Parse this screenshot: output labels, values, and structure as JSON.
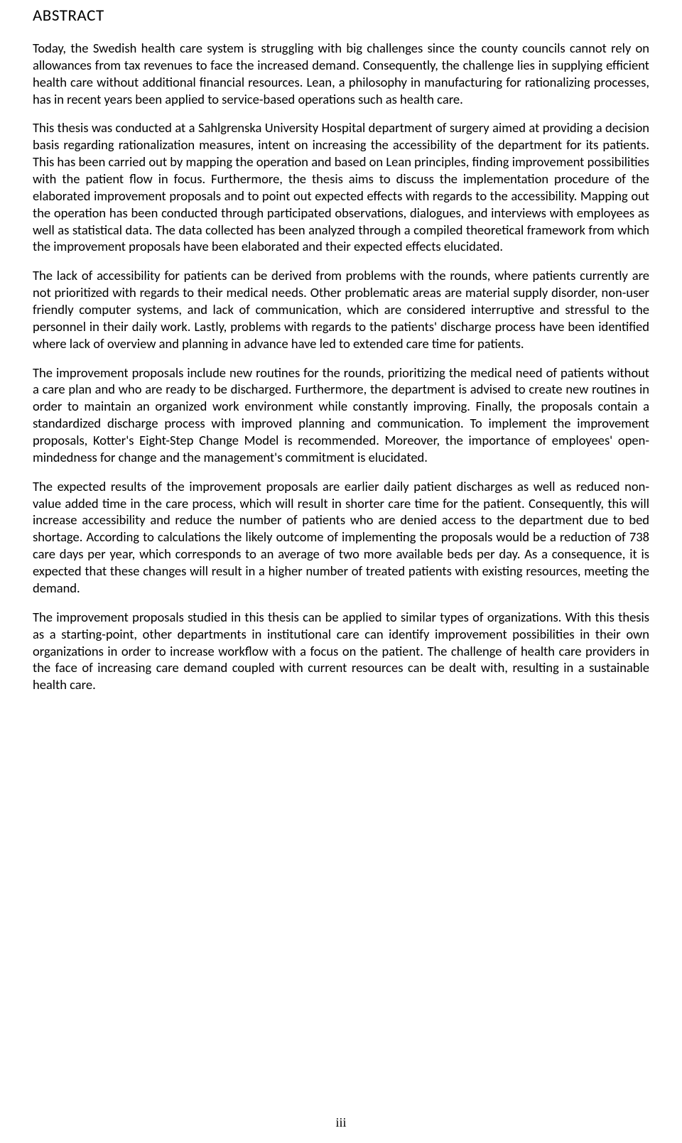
{
  "title": "ABSTRACT",
  "paragraphs": {
    "p1": "Today, the Swedish health care system is struggling with big challenges since the county councils cannot rely on allowances from tax revenues to face the increased demand. Consequently, the challenge lies in supplying efficient health care without additional financial resources. Lean, a philosophy in manufacturing for rationalizing processes, has in recent years been applied to service-based operations such as health care.",
    "p2": "This thesis was conducted at a Sahlgrenska University Hospital department of surgery aimed at providing a decision basis regarding rationalization measures, intent on increasing the accessibility of the department for its patients. This has been carried out by mapping the operation and based on Lean principles, finding improvement possibilities with the patient flow in focus. Furthermore, the thesis aims to discuss the implementation procedure of the elaborated improvement proposals and to point out expected effects with regards to the accessibility. Mapping out the operation has been conducted through participated observations, dialogues, and interviews with employees as well as statistical data. The data collected has been analyzed through a compiled theoretical framework from which the improvement proposals have been elaborated and their expected effects elucidated.",
    "p3": "The lack of accessibility for patients can be derived from problems with the rounds, where patients currently are not prioritized with regards to their medical needs. Other problematic areas are material supply disorder, non-user friendly computer systems, and lack of communication, which are considered interruptive and stressful to the personnel in their daily work. Lastly, problems with regards to the patients' discharge process have been identified where lack of overview and planning in advance have led to extended care time for patients.",
    "p4": "The improvement proposals include new routines for the rounds, prioritizing the medical need of patients without a care plan and who are ready to be discharged. Furthermore, the department is advised to create new routines in order to maintain an organized work environment while constantly improving. Finally, the proposals contain a standardized discharge process with improved planning and communication. To implement the improvement proposals, Kotter's Eight-Step Change Model is recommended. Moreover, the importance of employees' open-mindedness for change and the management's commitment is elucidated.",
    "p5": "The expected results of the improvement proposals are earlier daily patient discharges as well as reduced non-value added time in the care process, which will result in shorter care time for the patient. Consequently, this will increase accessibility and reduce the number of patients who are denied access to the department due to bed shortage. According to calculations the likely outcome of implementing the proposals would be a reduction of 738 care days per year, which corresponds to an average of two more available beds per day. As a consequence, it is expected that these changes will result in a higher number of treated patients with existing resources, meeting the demand.",
    "p6": "The improvement proposals studied in this thesis can be applied to similar types of organizations. With this thesis as a starting-point, other departments in institutional care can identify improvement possibilities in their own organizations in order to increase workflow with a focus on the patient. The challenge of health care providers in the face of increasing care demand coupled with current resources can be dealt with, resulting in a sustainable health care."
  },
  "pageNumber": "iii"
}
